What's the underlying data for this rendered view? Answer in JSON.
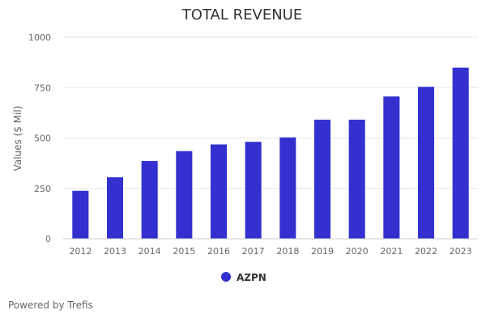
{
  "chart_data": {
    "type": "bar",
    "title": "TOTAL REVENUE",
    "ylabel": "Values ($ Mil)",
    "xlabel": "",
    "categories": [
      "2012",
      "2013",
      "2014",
      "2015",
      "2016",
      "2017",
      "2018",
      "2019",
      "2020",
      "2021",
      "2022",
      "2023"
    ],
    "series": [
      {
        "name": "AZPN",
        "color": "#3330cf",
        "values": [
          238,
          305,
          386,
          435,
          468,
          481,
          503,
          591,
          591,
          706,
          754,
          849
        ]
      }
    ],
    "ylim": [
      0,
      1000
    ],
    "yticks": [
      0,
      250,
      500,
      750,
      1000
    ],
    "grid": true,
    "legend_position": "bottom-center"
  },
  "footer": {
    "credit": "Powered by Trefis"
  }
}
